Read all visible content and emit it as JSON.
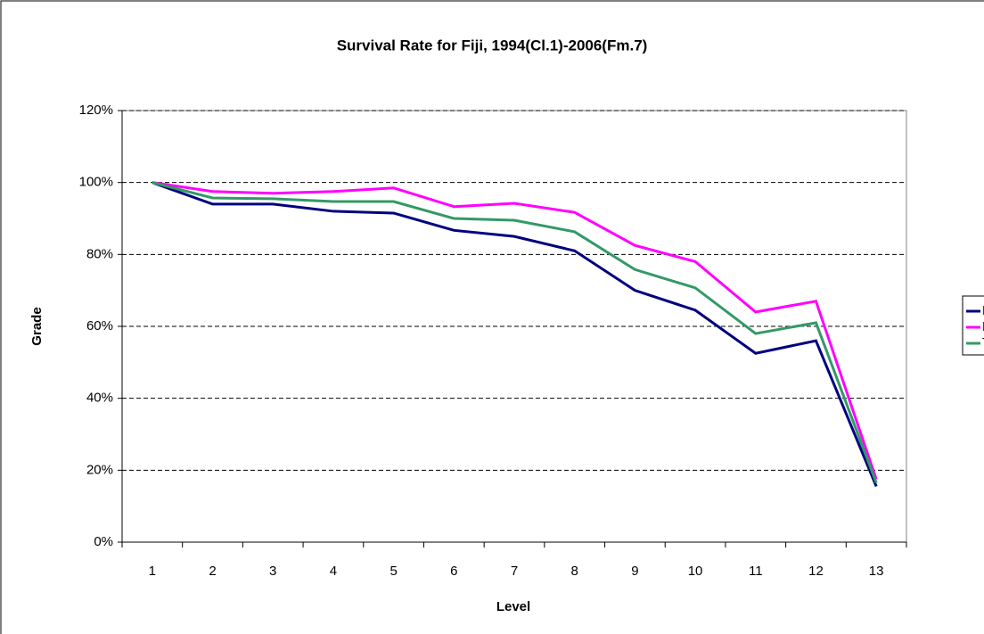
{
  "chart_data": {
    "type": "line",
    "title": "Survival Rate for Fiji, 1994(Cl.1)-2006(Fm.7)",
    "x_label": "Level",
    "y_label": "Grade",
    "categories": [
      "1",
      "2",
      "3",
      "4",
      "5",
      "6",
      "7",
      "8",
      "9",
      "10",
      "11",
      "12",
      "13"
    ],
    "series": [
      {
        "name": "M",
        "color": "#000080",
        "values": [
          100,
          94,
          94,
          92,
          91.5,
          86.7,
          85,
          81,
          70,
          64.5,
          52.5,
          56,
          15.5
        ]
      },
      {
        "name": "F",
        "color": "#ff00ff",
        "values": [
          100,
          97.5,
          97,
          97.5,
          98.5,
          93.3,
          94.2,
          91.7,
          82.5,
          78,
          64,
          67,
          17.5
        ]
      },
      {
        "name": "T",
        "color": "#339966",
        "values": [
          100,
          95.7,
          95.5,
          94.7,
          94.7,
          90,
          89.5,
          86.3,
          75.8,
          70.7,
          58,
          61,
          16.5
        ]
      }
    ],
    "ylim": [
      0,
      120
    ],
    "yticks": [
      {
        "value": 0,
        "label": "0%"
      },
      {
        "value": 20,
        "label": "20%"
      },
      {
        "value": 40,
        "label": "40%"
      },
      {
        "value": 60,
        "label": "60%"
      },
      {
        "value": 80,
        "label": "80%"
      },
      {
        "value": 100,
        "label": "100%"
      },
      {
        "value": 120,
        "label": "120%"
      }
    ],
    "grid": true,
    "legend": "right"
  }
}
